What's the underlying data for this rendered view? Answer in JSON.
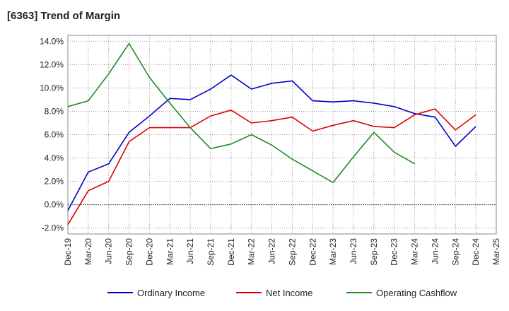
{
  "chart_data": {
    "type": "line",
    "title": "[6363]  Trend of Margin",
    "xlabel": "",
    "ylabel": "",
    "ylim": [
      -2.5,
      14.5
    ],
    "y_ticks": [
      -2.0,
      0.0,
      2.0,
      4.0,
      6.0,
      8.0,
      10.0,
      12.0,
      14.0
    ],
    "y_tick_labels": [
      "-2.0%",
      "0.0%",
      "2.0%",
      "4.0%",
      "6.0%",
      "8.0%",
      "10.0%",
      "12.0%",
      "14.0%"
    ],
    "grid": true,
    "legend_position": "bottom",
    "x": [
      "Dec-19",
      "Mar-20",
      "Jun-20",
      "Sep-20",
      "Dec-20",
      "Mar-21",
      "Jun-21",
      "Sep-21",
      "Dec-21",
      "Mar-22",
      "Jun-22",
      "Sep-22",
      "Dec-22",
      "Mar-23",
      "Jun-23",
      "Sep-23",
      "Dec-23",
      "Mar-24",
      "Jun-24",
      "Sep-24",
      "Dec-24",
      "Mar-25"
    ],
    "series": [
      {
        "name": "Ordinary Income",
        "color": "#0000cc",
        "values": [
          -0.5,
          2.8,
          3.5,
          6.2,
          7.6,
          9.1,
          9.0,
          9.9,
          11.1,
          9.9,
          10.4,
          10.6,
          8.9,
          8.8,
          8.9,
          8.7,
          8.4,
          7.8,
          7.5,
          5.0,
          6.7,
          null
        ]
      },
      {
        "name": "Net Income",
        "color": "#dd0000",
        "values": [
          -1.7,
          1.2,
          2.0,
          5.4,
          6.6,
          6.6,
          6.6,
          7.6,
          8.1,
          7.0,
          7.2,
          7.5,
          6.3,
          6.8,
          7.2,
          6.7,
          6.6,
          7.7,
          8.2,
          6.4,
          7.7,
          null
        ]
      },
      {
        "name": "Operating Cashflow",
        "color": "#228b22",
        "values": [
          8.4,
          8.9,
          11.2,
          13.8,
          10.9,
          8.7,
          6.6,
          4.8,
          5.2,
          6.0,
          5.1,
          3.9,
          2.9,
          1.9,
          4.1,
          6.2,
          4.5,
          3.5,
          null,
          null,
          null,
          null
        ]
      }
    ]
  }
}
